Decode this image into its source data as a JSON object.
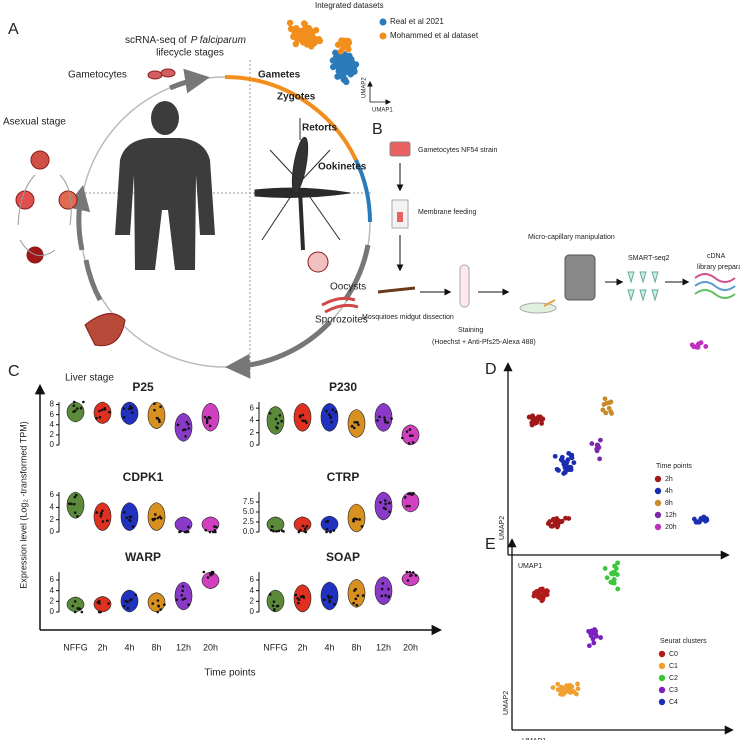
{
  "panels": [
    "A",
    "B",
    "C",
    "D",
    "E"
  ],
  "panel_a": {
    "title_prefix": "scRNA-seq of",
    "title_species": "P falciparum",
    "title_suffix": "lifecycle stages",
    "stages": [
      "Gametocytes",
      "Gametes",
      "Zygotes",
      "Retorts",
      "Ookinetes",
      "Asexual stage",
      "Oocysts",
      "Sporozoites",
      "Liver stage"
    ],
    "integrated": {
      "title": "Integrated datasets",
      "legend": [
        {
          "name": "Real et al 2021",
          "color": "#2b7bba"
        },
        {
          "name": "Mohammed et al dataset",
          "color": "#f28e1c"
        }
      ],
      "x_label": "UMAP1",
      "y_label": "UMAP2"
    }
  },
  "panel_b": {
    "steps": [
      "Gametocytes NF54 strain",
      "Membrane feeding",
      "Mosquitoes midgut dissection",
      "Staining",
      "(Hoechst + Anti-Pfs25-Alexa 488)",
      "Micro-capillary manipulation",
      "SMART-seq2",
      "cDNA",
      "library preparation"
    ]
  },
  "panel_c": {
    "y_label": "Expression level (Log₂ -transformed TPM)",
    "x_label": "Time points",
    "categories": [
      "NFFG",
      "2h",
      "4h",
      "8h",
      "12h",
      "20h"
    ],
    "colors": [
      "#5a8a3a",
      "#e03020",
      "#2232c0",
      "#d89020",
      "#8a3ac8",
      "#d040c0"
    ],
    "genes": [
      {
        "name": "P25",
        "ylim": [
          0,
          8.5
        ],
        "yticks": [
          0,
          2,
          4,
          6,
          8
        ],
        "values": [
          7.3,
          7,
          6.8,
          6,
          3.5,
          5.5
        ]
      },
      {
        "name": "P230",
        "ylim": [
          0,
          7
        ],
        "yticks": [
          0,
          2,
          4,
          6
        ],
        "values": [
          4,
          4.5,
          4.5,
          3.5,
          4.5,
          1
        ]
      },
      {
        "name": "CDPK1",
        "ylim": [
          0,
          6.5
        ],
        "yticks": [
          0,
          2,
          4,
          6
        ],
        "values": [
          4.5,
          2.5,
          2.5,
          2.5,
          0.2,
          0.2
        ]
      },
      {
        "name": "CTRP",
        "ylim": [
          0,
          10
        ],
        "yticks": [
          {
            "value": 0,
            "label": "0.0"
          },
          {
            "value": 2.5,
            "label": "2.5"
          },
          {
            "value": 5,
            "label": "5.0"
          },
          {
            "value": 7.5,
            "label": "7.5"
          }
        ],
        "values": [
          0.3,
          0.3,
          0.5,
          3.5,
          6.5,
          8.5
        ]
      },
      {
        "name": "WARP",
        "ylim": [
          0,
          7.5
        ],
        "yticks": [
          0,
          2,
          4,
          6
        ],
        "values": [
          0.2,
          0.3,
          1.5,
          1,
          3,
          7
        ]
      },
      {
        "name": "SOAP",
        "ylim": [
          0,
          7.5
        ],
        "yticks": [
          0,
          2,
          4,
          6
        ],
        "values": [
          1.5,
          2.5,
          3,
          3.5,
          4,
          7.5
        ]
      }
    ]
  },
  "panel_d": {
    "legend_title": "Time points",
    "legend": [
      {
        "name": "2h",
        "color": "#a01818"
      },
      {
        "name": "4h",
        "color": "#1a2db0"
      },
      {
        "name": "8h",
        "color": "#c88a2a"
      },
      {
        "name": "12h",
        "color": "#7a2aa8"
      },
      {
        "name": "20h",
        "color": "#c030c0"
      }
    ],
    "x_label": "UMAP1",
    "y_label": "UMAP2"
  },
  "panel_e": {
    "legend_title": "Seurat clusters",
    "legend": [
      {
        "name": "C0",
        "color": "#b01a1a"
      },
      {
        "name": "C1",
        "color": "#f0a030"
      },
      {
        "name": "C2",
        "color": "#3ac83a"
      },
      {
        "name": "C3",
        "color": "#7a20c0"
      },
      {
        "name": "C4",
        "color": "#1a30b0"
      }
    ],
    "x_label": "UMAP1",
    "y_label": "UMAP2"
  }
}
